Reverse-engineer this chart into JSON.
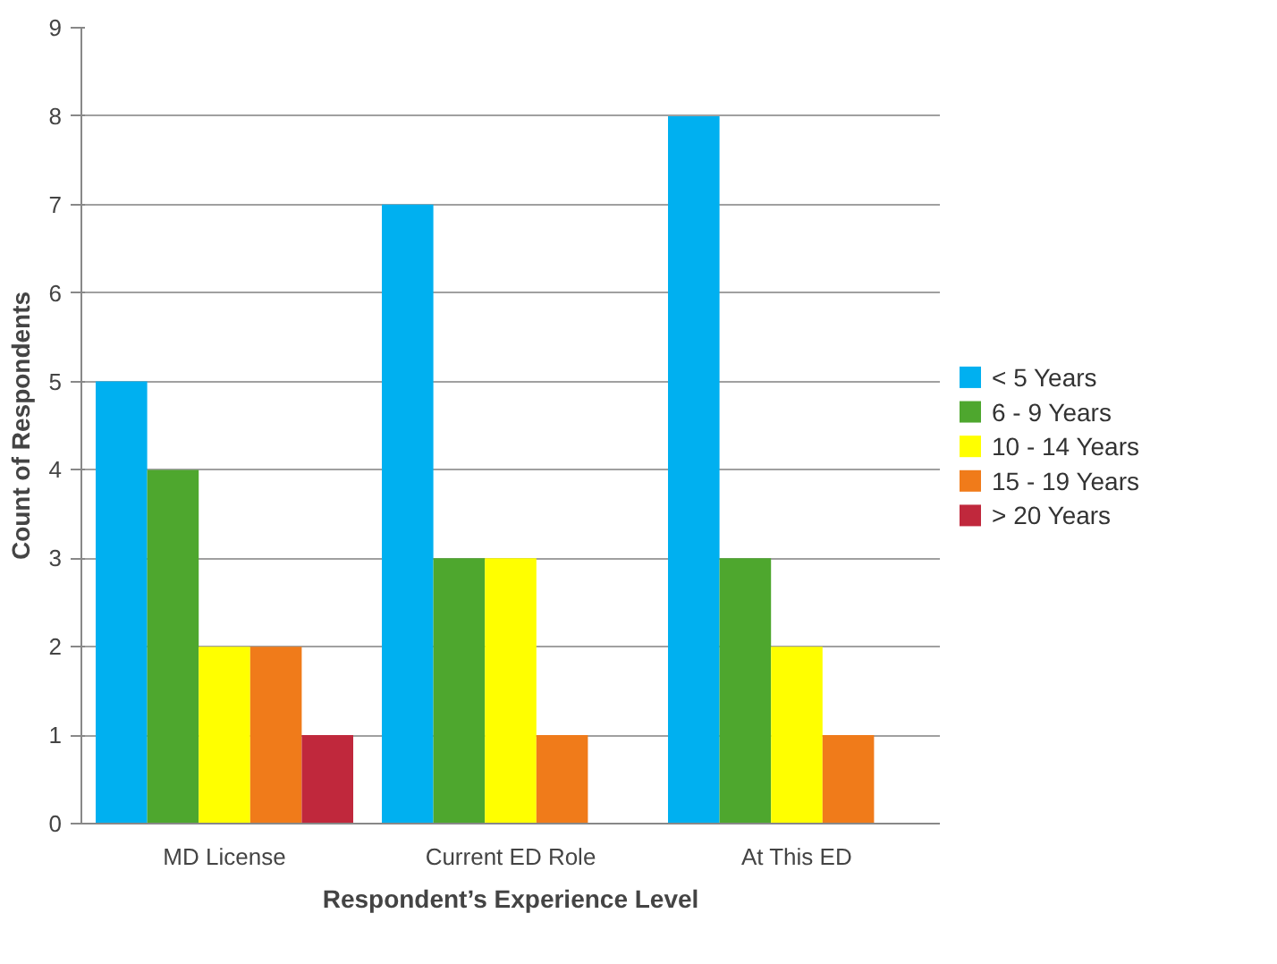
{
  "chart_data": {
    "type": "bar",
    "xlabel": "Respondent’s Experience Level",
    "ylabel": "Count of Respondents",
    "categories": [
      "MD License",
      "Current ED Role",
      "At This ED"
    ],
    "series": [
      {
        "name": "< 5 Years",
        "color": "#00b0f0",
        "values": [
          5,
          7,
          8
        ]
      },
      {
        "name": "6 - 9 Years",
        "color": "#4ea72e",
        "values": [
          4,
          3,
          3
        ]
      },
      {
        "name": "10 - 14 Years",
        "color": "#ffff00",
        "values": [
          2,
          3,
          2
        ]
      },
      {
        "name": "15 - 19 Years",
        "color": "#f07b1a",
        "values": [
          2,
          1,
          1
        ]
      },
      {
        "name": "> 20 Years",
        "color": "#c0283c",
        "values": [
          1,
          null,
          null
        ]
      }
    ],
    "ylim": [
      0,
      9
    ],
    "yticks": [
      0,
      1,
      2,
      3,
      4,
      5,
      6,
      7,
      8,
      9
    ],
    "grid": "y",
    "legend": "right"
  }
}
